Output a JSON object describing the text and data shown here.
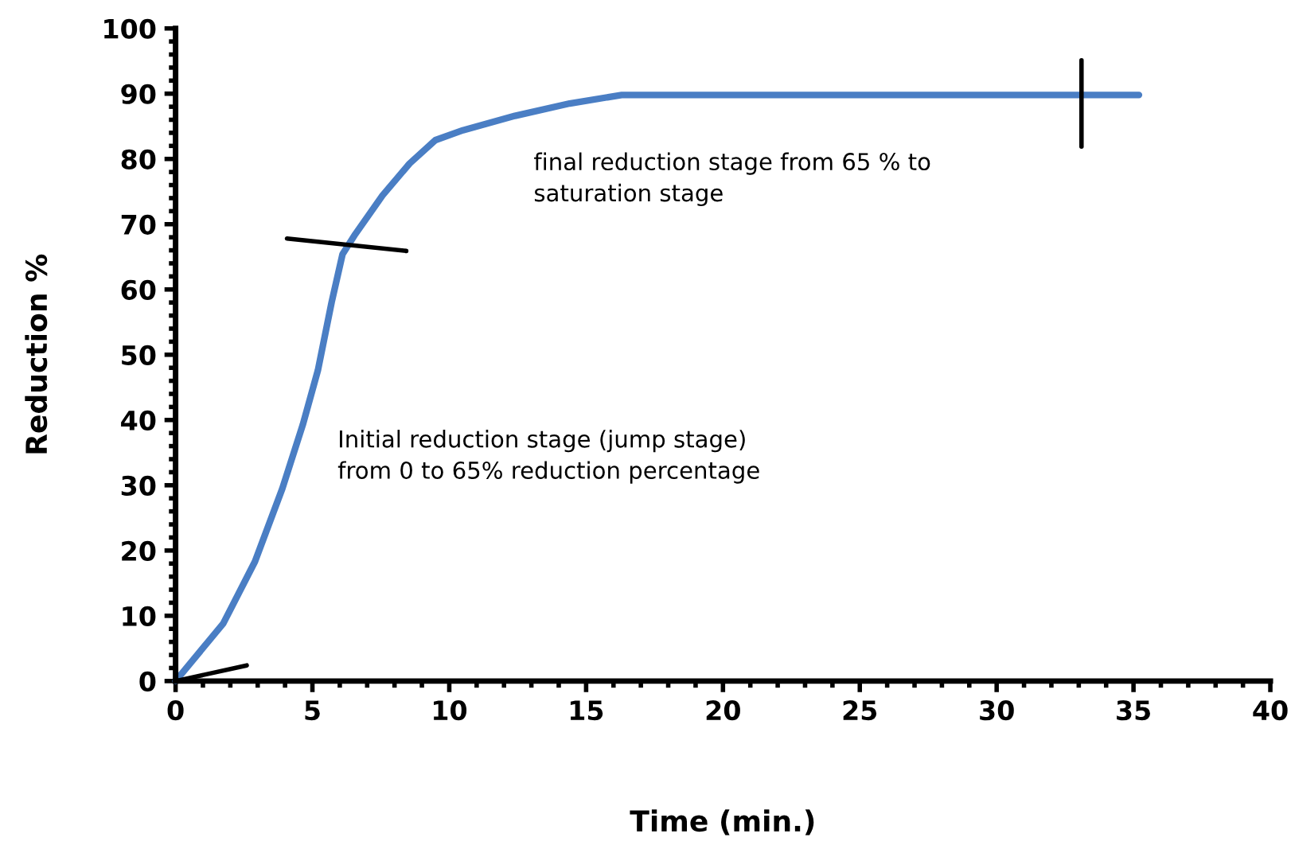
{
  "chart_data": {
    "type": "line",
    "xlabel": "Time (min.)",
    "ylabel": "Reduction %",
    "annotations": [
      "final reduction stage from 65 % to\nsaturation stage",
      "Initial reduction stage (jump stage)\nfrom 0 to 65% reduction percentage"
    ],
    "series": [
      {
        "color": "#4a7ec4",
        "x": [
          0,
          1.74,
          2.9,
          3.9,
          4.65,
          5.2,
          5.7,
          6.1,
          6.57,
          7.56,
          8.55,
          9.5,
          10.5,
          12.4,
          14.4,
          16.3,
          35.2
        ],
        "values": [
          0,
          8.8,
          18.3,
          29.5,
          39.3,
          47.6,
          58,
          65.4,
          68.5,
          74.4,
          79.3,
          82.9,
          84.4,
          86.6,
          88.5,
          89.8,
          89.8
        ]
      },
      {
        "color": "#000000",
        "x": [
          0,
          2.6
        ],
        "values": [
          0,
          2.4
        ]
      },
      {
        "color": "#000000",
        "x": [
          4.07,
          8.43
        ],
        "values": [
          67.8,
          65.9
        ]
      },
      {
        "color": "#000000",
        "x": [
          33.1,
          33.1
        ],
        "values": [
          95.1,
          81.9
        ]
      }
    ],
    "xlim": [
      0,
      40
    ],
    "xticks": [
      0,
      5,
      10,
      15,
      20,
      25,
      30,
      35,
      40
    ],
    "ylim": [
      0,
      100
    ],
    "yticks": [
      0,
      10,
      20,
      30,
      40,
      50,
      60,
      70,
      80,
      90,
      100
    ],
    "grid": false,
    "legend": false,
    "marker": "none",
    "line_style": "solid"
  }
}
